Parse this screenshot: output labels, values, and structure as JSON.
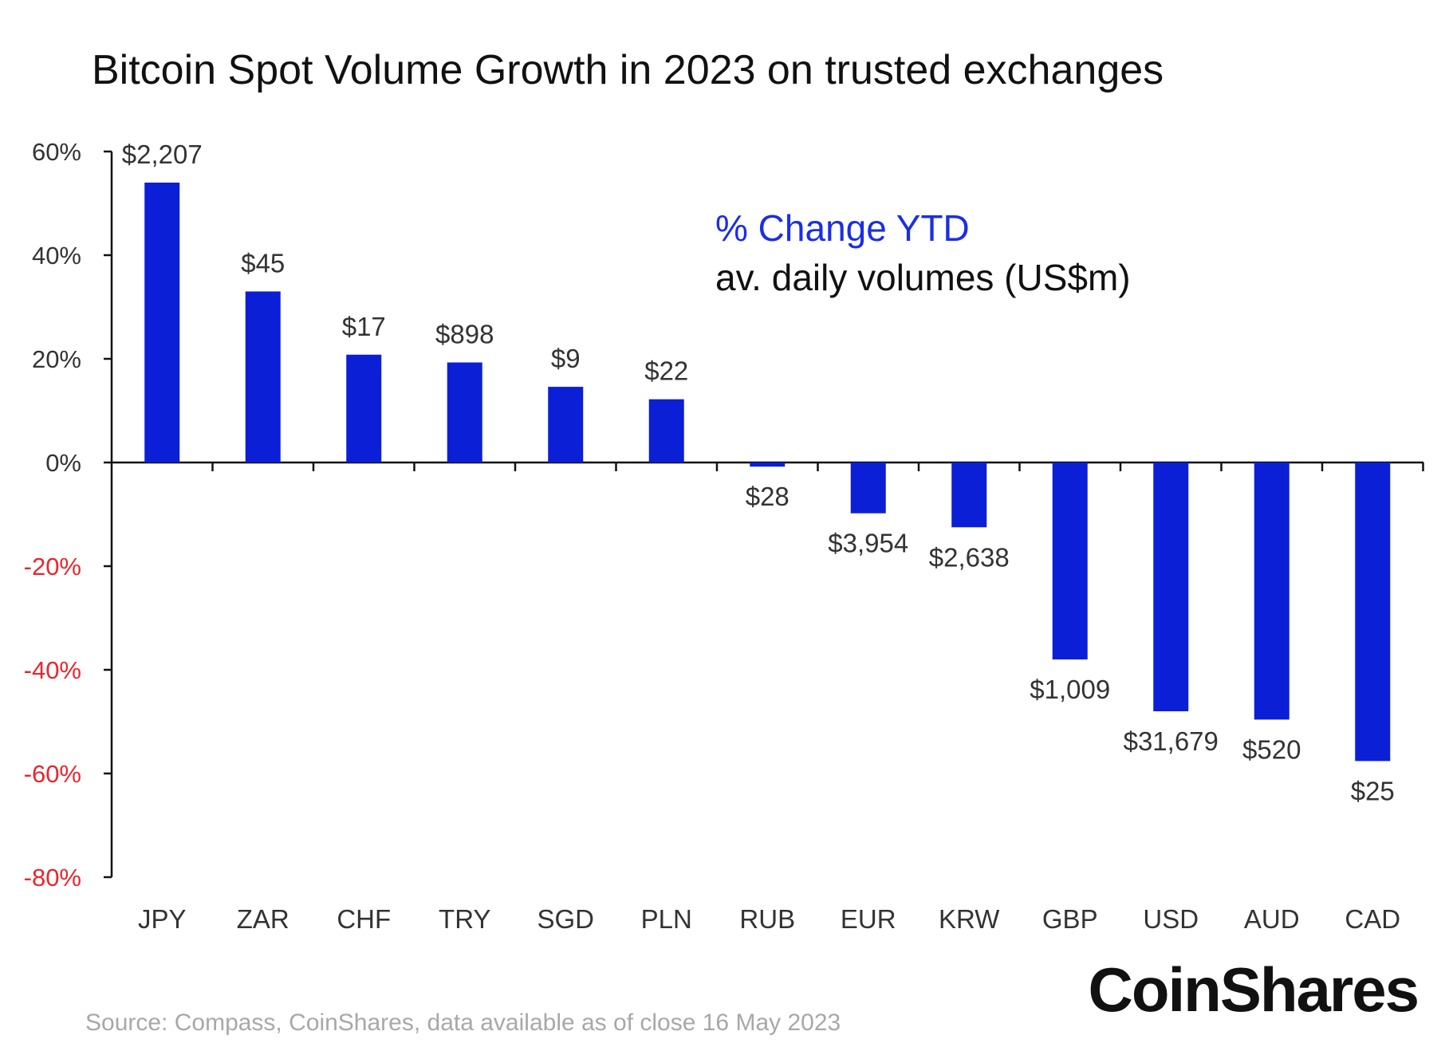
{
  "chart_data": {
    "type": "bar",
    "title": "Bitcoin Spot Volume Growth in 2023 on trusted exchanges",
    "legend": {
      "line1": "% Change YTD",
      "line2": "av. daily volumes (US$m)",
      "placement": "top-right"
    },
    "categories": [
      "JPY",
      "ZAR",
      "CHF",
      "TRY",
      "SGD",
      "PLN",
      "RUB",
      "EUR",
      "KRW",
      "GBP",
      "USD",
      "AUD",
      "CAD"
    ],
    "values": [
      54,
      33,
      20.8,
      19.3,
      14.6,
      12.2,
      -0.8,
      -9.8,
      -12.5,
      -38,
      -48,
      -49.6,
      -57.6
    ],
    "data_labels": [
      "$2,207",
      "$45",
      "$17",
      "$898",
      "$9",
      "$22",
      "$28",
      "$3,954",
      "$2,638",
      "$1,009",
      "$31,679",
      "$520",
      "$25"
    ],
    "yticks": [
      60,
      40,
      20,
      0,
      -20,
      -40,
      -60,
      -80
    ],
    "ytick_labels": [
      "60%",
      "40%",
      "20%",
      "0%",
      "-20%",
      "-40%",
      "-60%",
      "-80%"
    ],
    "ylim": [
      -80,
      60
    ],
    "xlabel": "",
    "ylabel": "",
    "grid": false,
    "colors": {
      "bar": "#0a1fd6",
      "legend_highlight": "#1a2ee8",
      "negative_tick": "#e8262e",
      "positive_tick": "#333333"
    }
  },
  "footer": {
    "source": "Source: Compass, CoinShares, data available as of close 16 May 2023",
    "brand": "CoinShares"
  }
}
